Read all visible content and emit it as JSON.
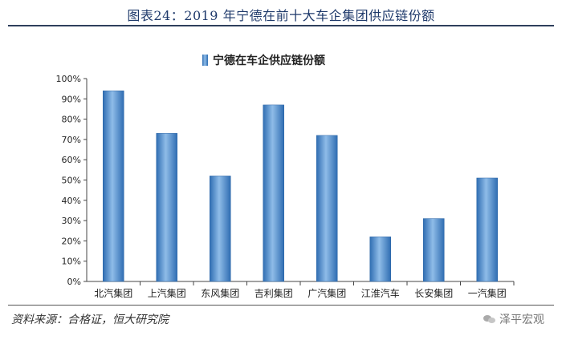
{
  "figure": {
    "title": "图表24：2019 年宁德在前十大车企集团供应链份额",
    "source": "资料来源：合格证，恒大研究院",
    "watermark": "泽平宏观"
  },
  "chart_data": {
    "type": "bar",
    "categories": [
      "北汽集团",
      "上汽集团",
      "东风集团",
      "吉利集团",
      "广汽集团",
      "江淮汽车",
      "长安集团",
      "一汽集团"
    ],
    "series": [
      {
        "name": "宁德在车企供应链份额",
        "values": [
          94,
          73,
          52,
          87,
          72,
          22,
          31,
          51
        ],
        "color": "#4a86c8"
      }
    ],
    "ylim": [
      0,
      100
    ],
    "yticks": [
      "0%",
      "10%",
      "20%",
      "30%",
      "40%",
      "50%",
      "60%",
      "70%",
      "80%",
      "90%",
      "100%"
    ],
    "legend": "top-center",
    "grid": false
  }
}
